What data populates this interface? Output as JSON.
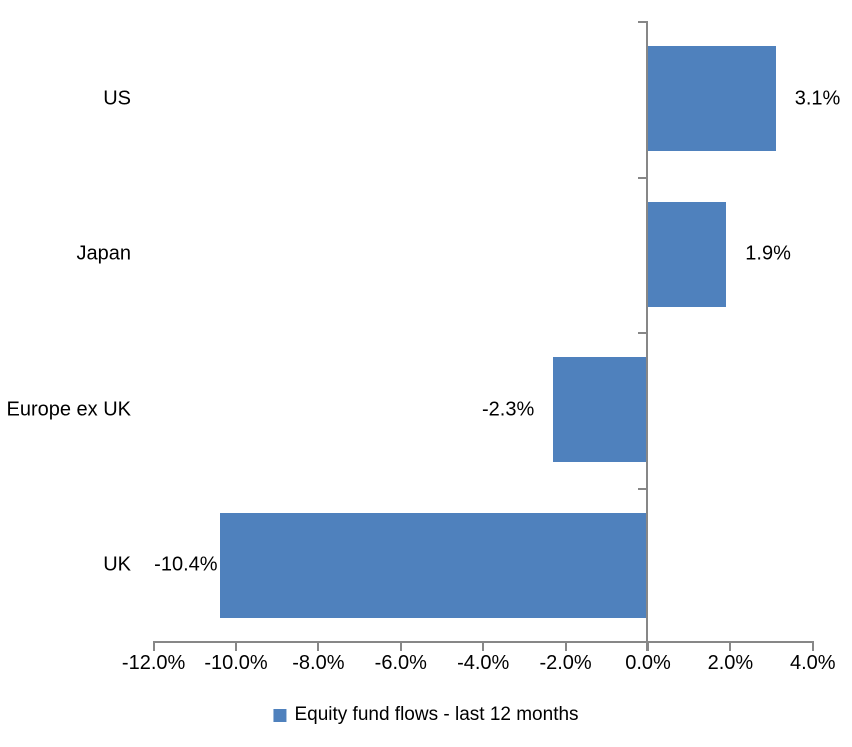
{
  "chart_data": {
    "type": "bar",
    "orientation": "horizontal",
    "title": "",
    "categories": [
      "US",
      "Japan",
      "Europe ex UK",
      "UK"
    ],
    "values": [
      3.1,
      1.9,
      -2.3,
      -10.4
    ],
    "value_labels": [
      "3.1%",
      "1.9%",
      "-2.3%",
      "-10.4%"
    ],
    "xlabel": "",
    "ylabel": "",
    "xlim": [
      -12,
      4
    ],
    "x_tick_labels": [
      "-12.0%",
      "-10.0%",
      "-8.0%",
      "-6.0%",
      "-4.0%",
      "-2.0%",
      "0.0%",
      "2.0%",
      "4.0%"
    ],
    "x_tick_values": [
      -12,
      -10,
      -8,
      -6,
      -4,
      -2,
      0,
      2,
      4
    ],
    "grid": false,
    "bar_color": "#4F81BD",
    "axis_color": "#878787",
    "text_color": "#000000",
    "legend": {
      "label": "Equity fund flows - last 12 months",
      "position": "bottom",
      "marker_color": "#4F81BD"
    }
  }
}
